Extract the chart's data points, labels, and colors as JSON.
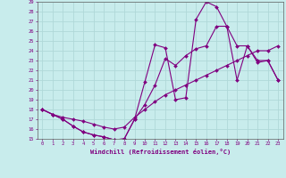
{
  "xlabel": "Windchill (Refroidissement éolien,°C)",
  "bg_color": "#c8ecec",
  "line_color": "#800080",
  "grid_color": "#b0d8d8",
  "xlim": [
    -0.5,
    23.5
  ],
  "ylim": [
    15,
    29
  ],
  "xticks": [
    0,
    1,
    2,
    3,
    4,
    5,
    6,
    7,
    8,
    9,
    10,
    11,
    12,
    13,
    14,
    15,
    16,
    17,
    18,
    19,
    20,
    21,
    22,
    23
  ],
  "yticks": [
    15,
    16,
    17,
    18,
    19,
    20,
    21,
    22,
    23,
    24,
    25,
    26,
    27,
    28,
    29
  ],
  "line1_x": [
    0,
    1,
    2,
    3,
    4,
    5,
    6,
    7,
    8,
    9,
    10,
    11,
    12,
    13,
    14,
    15,
    16,
    17,
    18,
    19,
    20,
    21,
    22,
    23
  ],
  "line1_y": [
    18.0,
    17.5,
    17.0,
    16.3,
    15.7,
    15.4,
    15.2,
    14.9,
    15.0,
    17.0,
    20.8,
    24.6,
    24.3,
    19.0,
    19.2,
    27.2,
    29.0,
    28.5,
    26.5,
    21.0,
    24.5,
    22.8,
    23.0,
    21.0
  ],
  "line2_x": [
    0,
    1,
    2,
    3,
    4,
    5,
    6,
    7,
    8,
    9,
    10,
    11,
    12,
    13,
    14,
    15,
    16,
    17,
    18,
    19,
    20,
    21,
    22,
    23
  ],
  "line2_y": [
    18.0,
    17.5,
    17.0,
    16.3,
    15.7,
    15.4,
    15.2,
    14.9,
    15.0,
    17.0,
    18.5,
    20.5,
    23.2,
    22.5,
    23.5,
    24.2,
    24.5,
    26.5,
    26.5,
    24.5,
    24.5,
    23.0,
    23.0,
    21.0
  ],
  "line3_x": [
    0,
    1,
    2,
    3,
    4,
    5,
    6,
    7,
    8,
    9,
    10,
    11,
    12,
    13,
    14,
    15,
    16,
    17,
    18,
    19,
    20,
    21,
    22,
    23
  ],
  "line3_y": [
    18.0,
    17.5,
    17.2,
    17.0,
    16.8,
    16.5,
    16.2,
    16.0,
    16.2,
    17.2,
    18.0,
    18.8,
    19.5,
    20.0,
    20.5,
    21.0,
    21.5,
    22.0,
    22.5,
    23.0,
    23.5,
    24.0,
    24.0,
    24.5
  ]
}
